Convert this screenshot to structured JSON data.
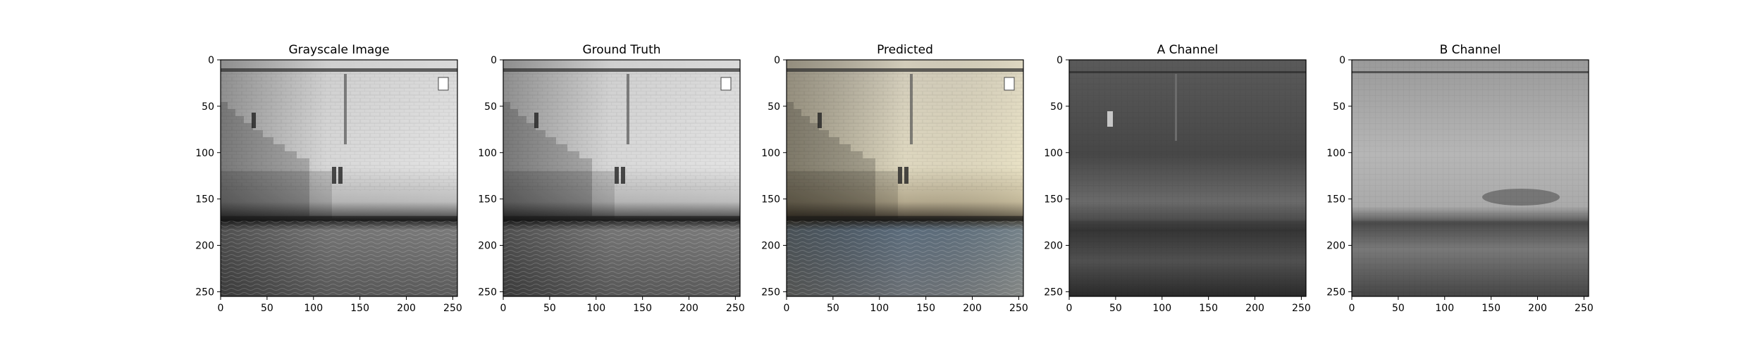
{
  "chart_data": [
    {
      "type": "heatmap",
      "title": "Grayscale Image",
      "xlim": [
        0,
        255
      ],
      "ylim": [
        255,
        0
      ],
      "xticks": [
        0,
        50,
        100,
        150,
        200,
        250
      ],
      "yticks": [
        0,
        50,
        100,
        150,
        200,
        250
      ],
      "tick_labels_x": [
        "0",
        "50",
        "100",
        "150",
        "200",
        "250"
      ],
      "tick_labels_y": [
        "0",
        "50",
        "100",
        "150",
        "200",
        "250"
      ],
      "colormap": "gray"
    },
    {
      "type": "heatmap",
      "title": "Ground Truth",
      "xlim": [
        0,
        255
      ],
      "ylim": [
        255,
        0
      ],
      "xticks": [
        0,
        50,
        100,
        150,
        200,
        250
      ],
      "yticks": [
        0,
        50,
        100,
        150,
        200,
        250
      ],
      "tick_labels_x": [
        "0",
        "50",
        "100",
        "150",
        "200",
        "250"
      ],
      "tick_labels_y": [
        "0",
        "50",
        "100",
        "150",
        "200",
        "250"
      ],
      "colormap": "gray"
    },
    {
      "type": "heatmap",
      "title": "Predicted",
      "xlim": [
        0,
        255
      ],
      "ylim": [
        255,
        0
      ],
      "xticks": [
        0,
        50,
        100,
        150,
        200,
        250
      ],
      "yticks": [
        0,
        50,
        100,
        150,
        200,
        250
      ],
      "tick_labels_x": [
        "0",
        "50",
        "100",
        "150",
        "200",
        "250"
      ],
      "tick_labels_y": [
        "0",
        "50",
        "100",
        "150",
        "200",
        "250"
      ],
      "colormap": "color"
    },
    {
      "type": "heatmap",
      "title": "A Channel",
      "xlim": [
        0,
        255
      ],
      "ylim": [
        255,
        0
      ],
      "xticks": [
        0,
        50,
        100,
        150,
        200,
        250
      ],
      "yticks": [
        0,
        50,
        100,
        150,
        200,
        250
      ],
      "tick_labels_x": [
        "0",
        "50",
        "100",
        "150",
        "200",
        "250"
      ],
      "tick_labels_y": [
        "0",
        "50",
        "100",
        "150",
        "200",
        "250"
      ],
      "colormap": "gray"
    },
    {
      "type": "heatmap",
      "title": "B Channel",
      "xlim": [
        0,
        255
      ],
      "ylim": [
        255,
        0
      ],
      "xticks": [
        0,
        50,
        100,
        150,
        200,
        250
      ],
      "yticks": [
        0,
        50,
        100,
        150,
        200,
        250
      ],
      "tick_labels_x": [
        "0",
        "50",
        "100",
        "150",
        "200",
        "250"
      ],
      "tick_labels_y": [
        "0",
        "50",
        "100",
        "150",
        "200",
        "250"
      ],
      "colormap": "gray"
    }
  ]
}
